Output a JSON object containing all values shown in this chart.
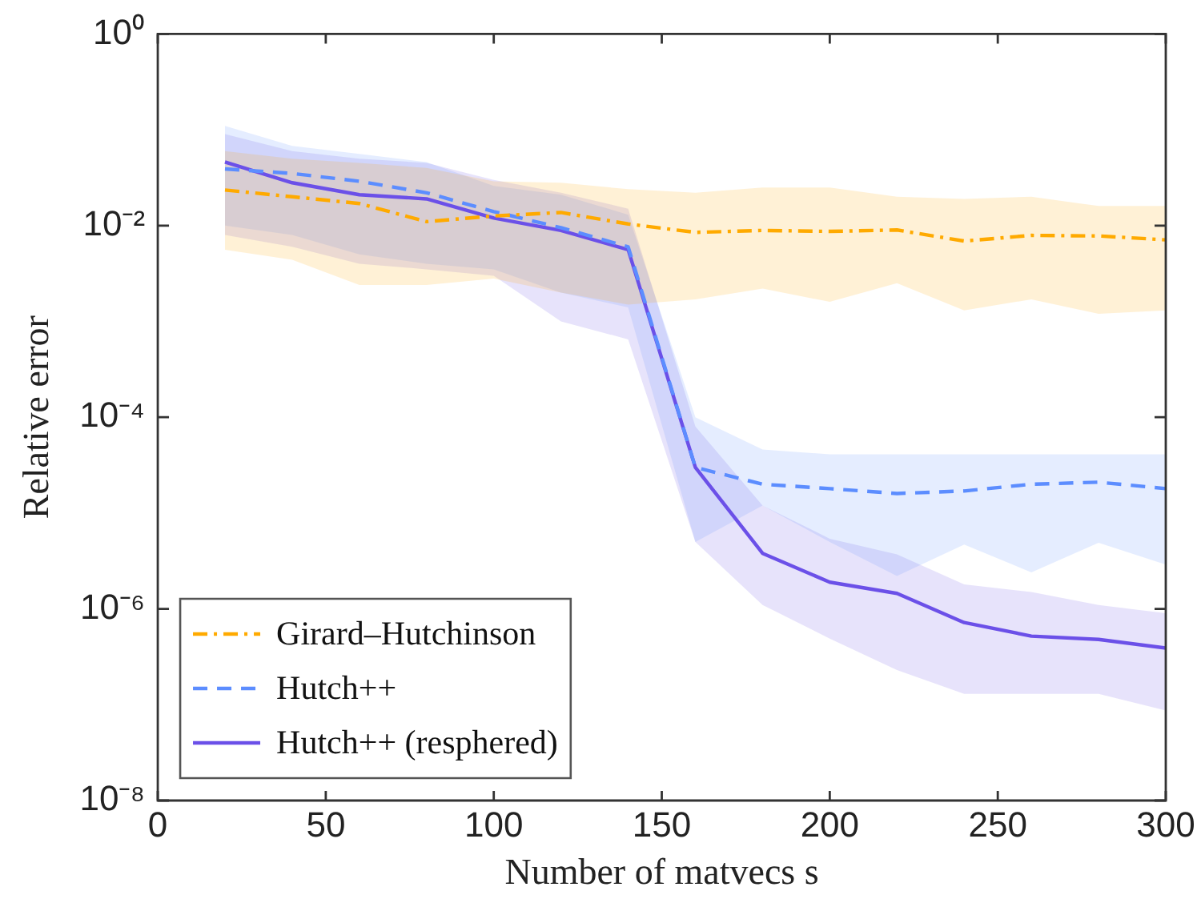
{
  "chart_data": {
    "type": "line",
    "xlabel": "Number of matvecs s",
    "ylabel": "Relative error",
    "x": [
      20,
      40,
      60,
      80,
      100,
      120,
      140,
      160,
      180,
      200,
      220,
      240,
      260,
      280,
      300
    ],
    "xlim": [
      0,
      300
    ],
    "xticks": [
      0,
      50,
      100,
      150,
      200,
      250,
      300
    ],
    "log": "y",
    "ylim": [
      1e-08,
      1
    ],
    "yticks": [
      {
        "value": 1e-08,
        "label": "10⁻⁸"
      },
      {
        "value": 1e-06,
        "label": "10⁻⁶"
      },
      {
        "value": 0.0001,
        "label": "10⁻⁴"
      },
      {
        "value": 0.01,
        "label": "10⁻²"
      },
      {
        "value": 1,
        "label": "10⁰"
      }
    ],
    "grid": false,
    "legend": "bottom left",
    "marker": "none",
    "series": [
      {
        "name": "Girard–Hutchinson",
        "color": "#ffaa00",
        "line_style": "dashdot",
        "values": [
          0.0235,
          0.02,
          0.017,
          0.011,
          0.0126,
          0.0137,
          0.0104,
          0.0085,
          0.0089,
          0.0087,
          0.009,
          0.0069,
          0.0079,
          0.0078,
          0.0071
        ],
        "lower": [
          0.0056,
          0.0044,
          0.0024,
          0.0024,
          0.0028,
          0.002,
          0.0015,
          0.0017,
          0.0022,
          0.0016,
          0.0025,
          0.0013,
          0.0017,
          0.0012,
          0.0013
        ],
        "upper": [
          0.06,
          0.05,
          0.045,
          0.04,
          0.029,
          0.028,
          0.024,
          0.022,
          0.025,
          0.025,
          0.02,
          0.019,
          0.02,
          0.016,
          0.016
        ]
      },
      {
        "name": "Hutch++",
        "color": "#5c8dff",
        "line_style": "dashed",
        "values": [
          0.039,
          0.035,
          0.029,
          0.022,
          0.014,
          0.0095,
          0.006,
          3e-05,
          2e-05,
          1.8e-05,
          1.6e-05,
          1.7e-05,
          2e-05,
          2.1e-05,
          1.8e-05
        ],
        "lower": [
          0.01,
          0.008,
          0.005,
          0.004,
          0.0035,
          0.002,
          0.0014,
          5e-06,
          1.2e-05,
          5e-06,
          2.2e-06,
          4.7e-06,
          2.4e-06,
          4.9e-06,
          2.9e-06
        ],
        "upper": [
          0.11,
          0.068,
          0.056,
          0.046,
          0.026,
          0.021,
          0.013,
          0.0001,
          4.6e-05,
          4.1e-05,
          4.1e-05,
          4.1e-05,
          4.1e-05,
          4.1e-05,
          4.1e-05
        ]
      },
      {
        "name": "Hutch++ (resphered)",
        "color": "#6b50e8",
        "line_style": "solid",
        "values": [
          0.046,
          0.028,
          0.021,
          0.019,
          0.012,
          0.0089,
          0.0056,
          3e-05,
          3.8e-06,
          1.9e-06,
          1.45e-06,
          7.2e-07,
          5.2e-07,
          4.8e-07,
          3.9e-07
        ],
        "lower": [
          0.008,
          0.006,
          0.004,
          0.0035,
          0.003,
          0.001,
          0.00065,
          5e-06,
          1.1e-06,
          4.9e-07,
          2.3e-07,
          1.3e-07,
          1.3e-07,
          1.3e-07,
          8.7e-08
        ],
        "upper": [
          0.09,
          0.06,
          0.05,
          0.045,
          0.03,
          0.022,
          0.015,
          8e-05,
          1.2e-05,
          5.4e-06,
          3.7e-06,
          1.8e-06,
          1.5e-06,
          1.1e-06,
          9e-07
        ]
      }
    ]
  }
}
